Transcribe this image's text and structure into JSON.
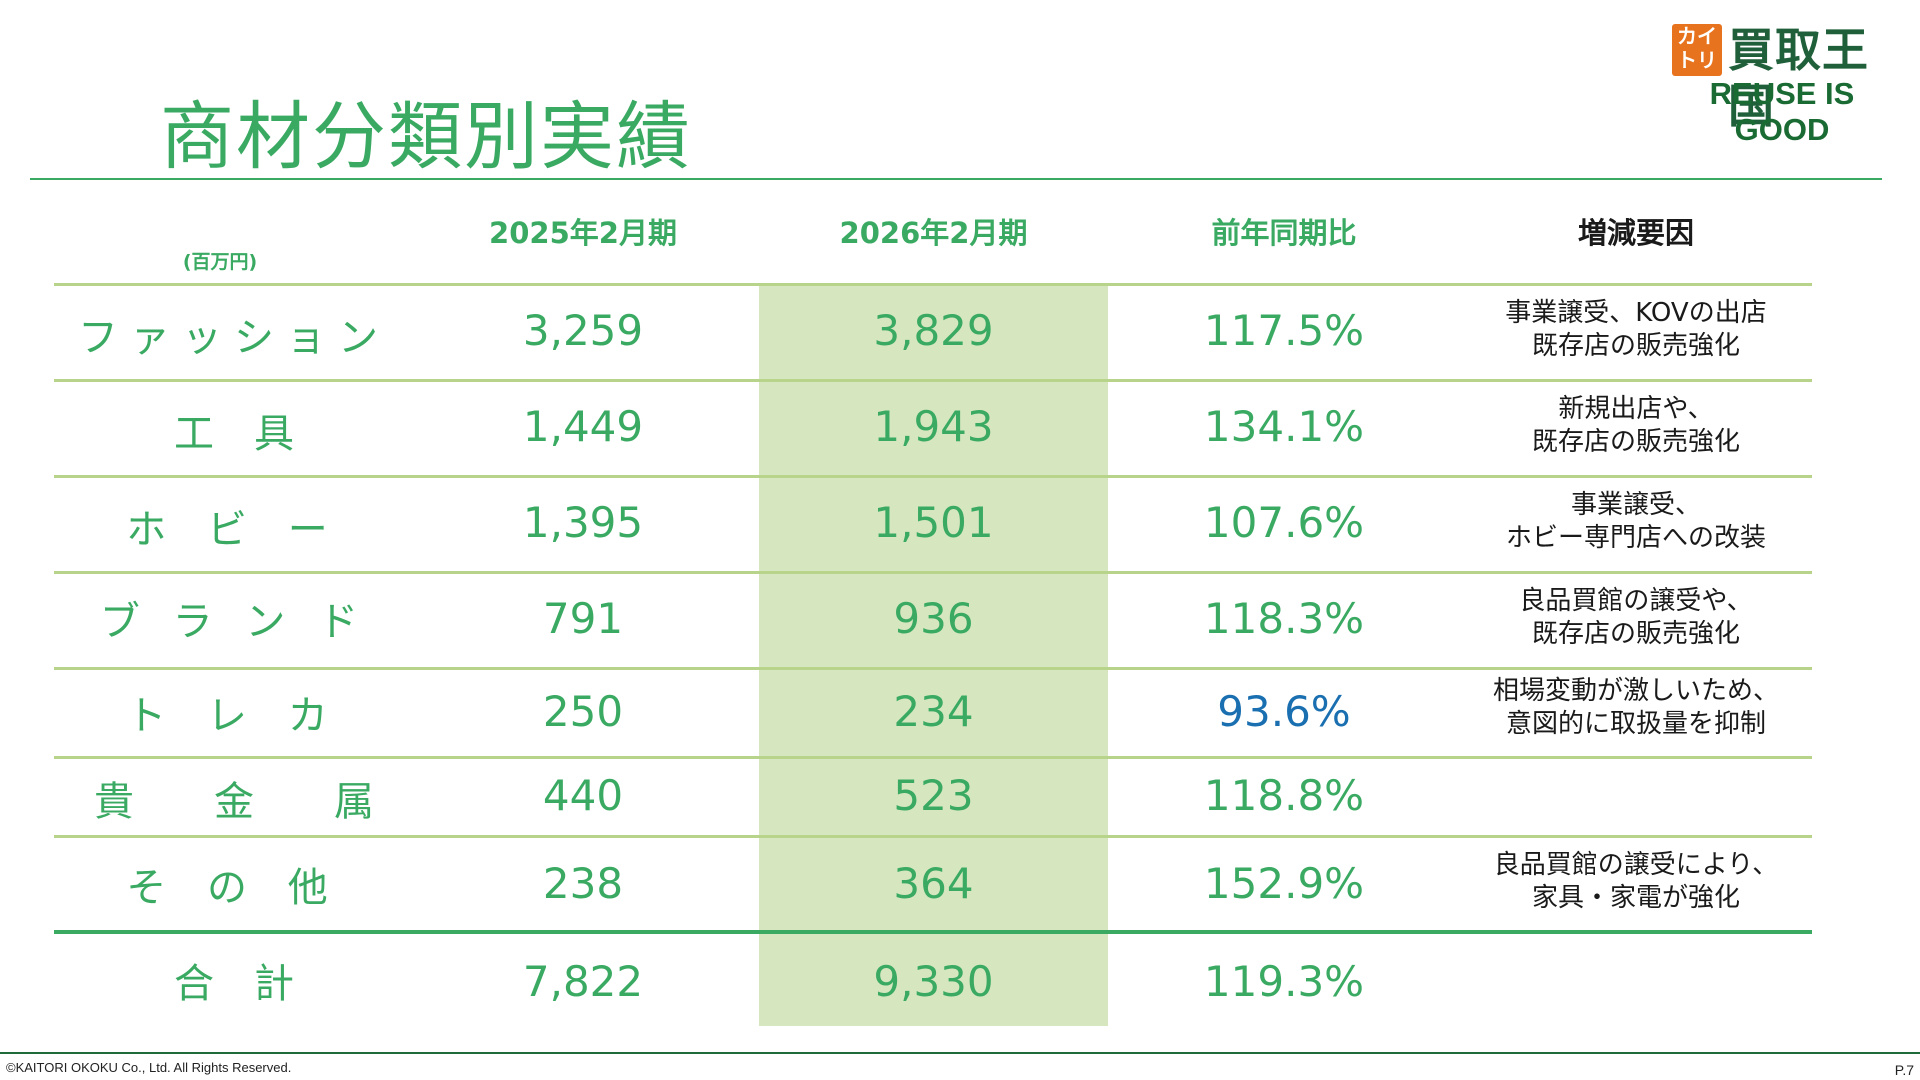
{
  "title": "商材分類別実績",
  "logo": {
    "box_line1": "カイ",
    "box_line2": "トリ",
    "name": "買取王国",
    "tagline": "REUSE IS GOOD"
  },
  "table": {
    "unit": "(百万円)",
    "headers": [
      "2025年2月期",
      "2026年2月期",
      "前年同期比",
      "増減要因"
    ],
    "rows": [
      {
        "category": "ファッション",
        "fy2025": "3,259",
        "fy2026": "3,829",
        "yoy": "117.5%",
        "reason_line1": "事業譲受、KOVの出店",
        "reason_line2": "既存店の販売強化"
      },
      {
        "category": "工　具",
        "fy2025": "1,449",
        "fy2026": "1,943",
        "yoy": "134.1%",
        "reason_line1": "新規出店や、",
        "reason_line2": "既存店の販売強化"
      },
      {
        "category": "ホ ビ ー",
        "fy2025": "1,395",
        "fy2026": "1,501",
        "yoy": "107.6%",
        "reason_line1": "事業譲受、",
        "reason_line2": "ホビー専門店への改装"
      },
      {
        "category": "ブ ラ ン ド",
        "fy2025": "791",
        "fy2026": "936",
        "yoy": "118.3%",
        "reason_line1": "良品買館の譲受や、",
        "reason_line2": "既存店の販売強化"
      },
      {
        "category": "ト レ カ",
        "fy2025": "250",
        "fy2026": "234",
        "yoy": "93.6%",
        "reason_line1": "相場変動が激しいため、",
        "reason_line2": "意図的に取扱量を抑制"
      },
      {
        "category": "貴　　金　　属",
        "fy2025": "440",
        "fy2026": "523",
        "yoy": "118.8%",
        "reason_line1": "",
        "reason_line2": ""
      },
      {
        "category": "そ の 他",
        "fy2025": "238",
        "fy2026": "364",
        "yoy": "152.9%",
        "reason_line1": "良品買館の譲受により、",
        "reason_line2": "家具・家電が強化"
      }
    ],
    "total": {
      "category": "合　計",
      "fy2025": "7,822",
      "fy2026": "9,330",
      "yoy": "119.3%"
    }
  },
  "colors": {
    "accent": "#3aaa63",
    "highlight": "#d6e6bf",
    "negative": "#1a6fb0",
    "logo_orange": "#e8731e"
  },
  "footer": {
    "copyright": "©KAITORI OKOKU Co., Ltd. All Rights Reserved.",
    "page": "P.7"
  }
}
